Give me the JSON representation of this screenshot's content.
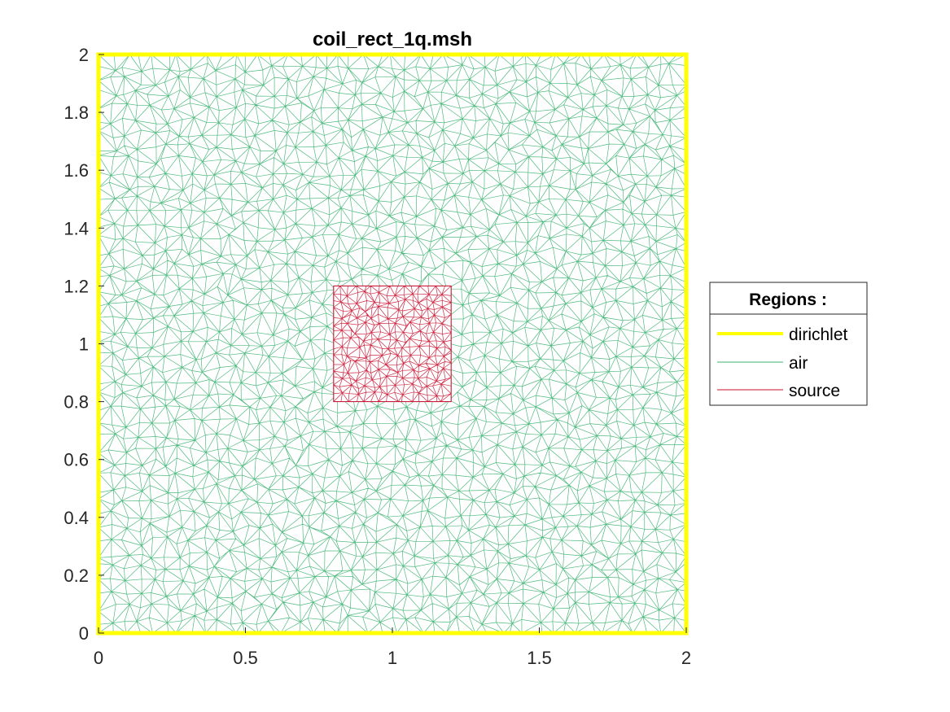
{
  "chart_data": {
    "type": "mesh",
    "title": "coil_rect_1q.msh",
    "xlabel": "",
    "ylabel": "",
    "xlim": [
      0,
      2
    ],
    "ylim": [
      0,
      2
    ],
    "xticks": [
      {
        "value": 0,
        "label": "0"
      },
      {
        "value": 0.5,
        "label": "0.5"
      },
      {
        "value": 1,
        "label": "1"
      },
      {
        "value": 1.5,
        "label": "1.5"
      },
      {
        "value": 2,
        "label": "2"
      }
    ],
    "yticks": [
      {
        "value": 0,
        "label": "0"
      },
      {
        "value": 0.2,
        "label": "0.2"
      },
      {
        "value": 0.4,
        "label": "0.4"
      },
      {
        "value": 0.6,
        "label": "0.6"
      },
      {
        "value": 0.8,
        "label": "0.8"
      },
      {
        "value": 1,
        "label": "1"
      },
      {
        "value": 1.2,
        "label": "1.2"
      },
      {
        "value": 1.4,
        "label": "1.4"
      },
      {
        "value": 1.6,
        "label": "1.6"
      },
      {
        "value": 1.8,
        "label": "1.8"
      },
      {
        "value": 2,
        "label": "2"
      }
    ],
    "grid": false,
    "legend": {
      "title": "Regions :",
      "placement": "outside-right",
      "entries": [
        {
          "label": "dirichlet",
          "color": "#ffff00"
        },
        {
          "label": "air",
          "color": "#3cb371"
        },
        {
          "label": "source",
          "color": "#c8102e"
        }
      ]
    },
    "regions": [
      {
        "name": "dirichlet",
        "kind": "boundary",
        "color": "#ffff00",
        "x": [
          0,
          2
        ],
        "y": [
          0,
          2
        ]
      },
      {
        "name": "air",
        "kind": "triangular mesh",
        "color": "#3cb371",
        "x": [
          0,
          2
        ],
        "y": [
          0,
          2
        ]
      },
      {
        "name": "source",
        "kind": "triangular mesh",
        "color": "#c8102e",
        "x": [
          0.8,
          1.2
        ],
        "y": [
          0.8,
          1.2
        ]
      }
    ]
  }
}
